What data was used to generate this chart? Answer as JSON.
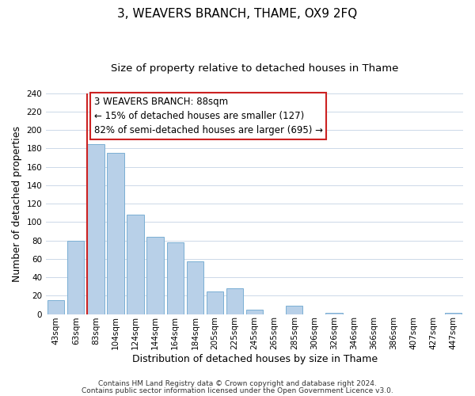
{
  "title": "3, WEAVERS BRANCH, THAME, OX9 2FQ",
  "subtitle": "Size of property relative to detached houses in Thame",
  "xlabel": "Distribution of detached houses by size in Thame",
  "ylabel": "Number of detached properties",
  "categories": [
    "43sqm",
    "63sqm",
    "83sqm",
    "104sqm",
    "124sqm",
    "144sqm",
    "164sqm",
    "184sqm",
    "205sqm",
    "225sqm",
    "245sqm",
    "265sqm",
    "285sqm",
    "306sqm",
    "326sqm",
    "346sqm",
    "366sqm",
    "386sqm",
    "407sqm",
    "427sqm",
    "447sqm"
  ],
  "values": [
    15,
    80,
    185,
    175,
    108,
    84,
    78,
    57,
    25,
    28,
    5,
    0,
    9,
    0,
    1,
    0,
    0,
    0,
    0,
    0,
    1
  ],
  "bar_color": "#b8d0e8",
  "bar_edge_color": "#7aafd4",
  "highlight_index": 2,
  "highlight_line_color": "#cc2222",
  "ylim": [
    0,
    240
  ],
  "yticks": [
    0,
    20,
    40,
    60,
    80,
    100,
    120,
    140,
    160,
    180,
    200,
    220,
    240
  ],
  "annotation_title": "3 WEAVERS BRANCH: 88sqm",
  "annotation_line1": "← 15% of detached houses are smaller (127)",
  "annotation_line2": "82% of semi-detached houses are larger (695) →",
  "footnote1": "Contains HM Land Registry data © Crown copyright and database right 2024.",
  "footnote2": "Contains public sector information licensed under the Open Government Licence v3.0.",
  "title_fontsize": 11,
  "subtitle_fontsize": 9.5,
  "axis_label_fontsize": 9,
  "tick_fontsize": 7.5,
  "annotation_fontsize": 8.5,
  "footnote_fontsize": 6.5,
  "background_color": "#ffffff",
  "grid_color": "#ccd8e8"
}
